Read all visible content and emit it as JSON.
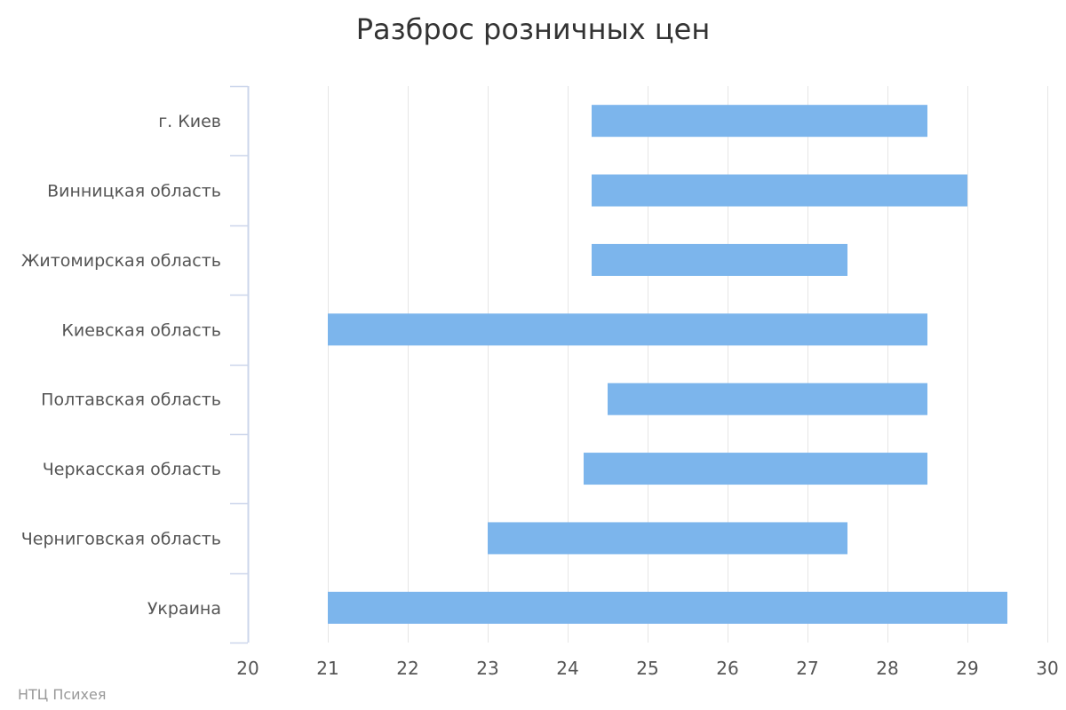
{
  "chart_data": {
    "type": "bar",
    "orientation": "horizontal",
    "subtype": "range",
    "title": "Разброс розничных цен",
    "categories": [
      "г. Киев",
      "Винницкая область",
      "Житомирская область",
      "Киевская область",
      "Полтавская область",
      "Черкасская область",
      "Черниговская область",
      "Украина"
    ],
    "ranges": [
      [
        24.3,
        28.5
      ],
      [
        24.3,
        29.0
      ],
      [
        24.3,
        27.5
      ],
      [
        21.0,
        28.5
      ],
      [
        24.5,
        28.5
      ],
      [
        24.2,
        28.5
      ],
      [
        23.0,
        27.5
      ],
      [
        21.0,
        29.5
      ]
    ],
    "xlim": [
      20,
      30
    ],
    "xticks": [
      20,
      21,
      22,
      23,
      24,
      25,
      26,
      27,
      28,
      29,
      30
    ],
    "xlabel": "",
    "ylabel": "",
    "grid": true,
    "legend": "none",
    "bar_color": "#7cb5ec",
    "grid_color": "#e6e6e6",
    "axis_color": "#ccd6eb"
  },
  "credits": "НТЦ Психея"
}
